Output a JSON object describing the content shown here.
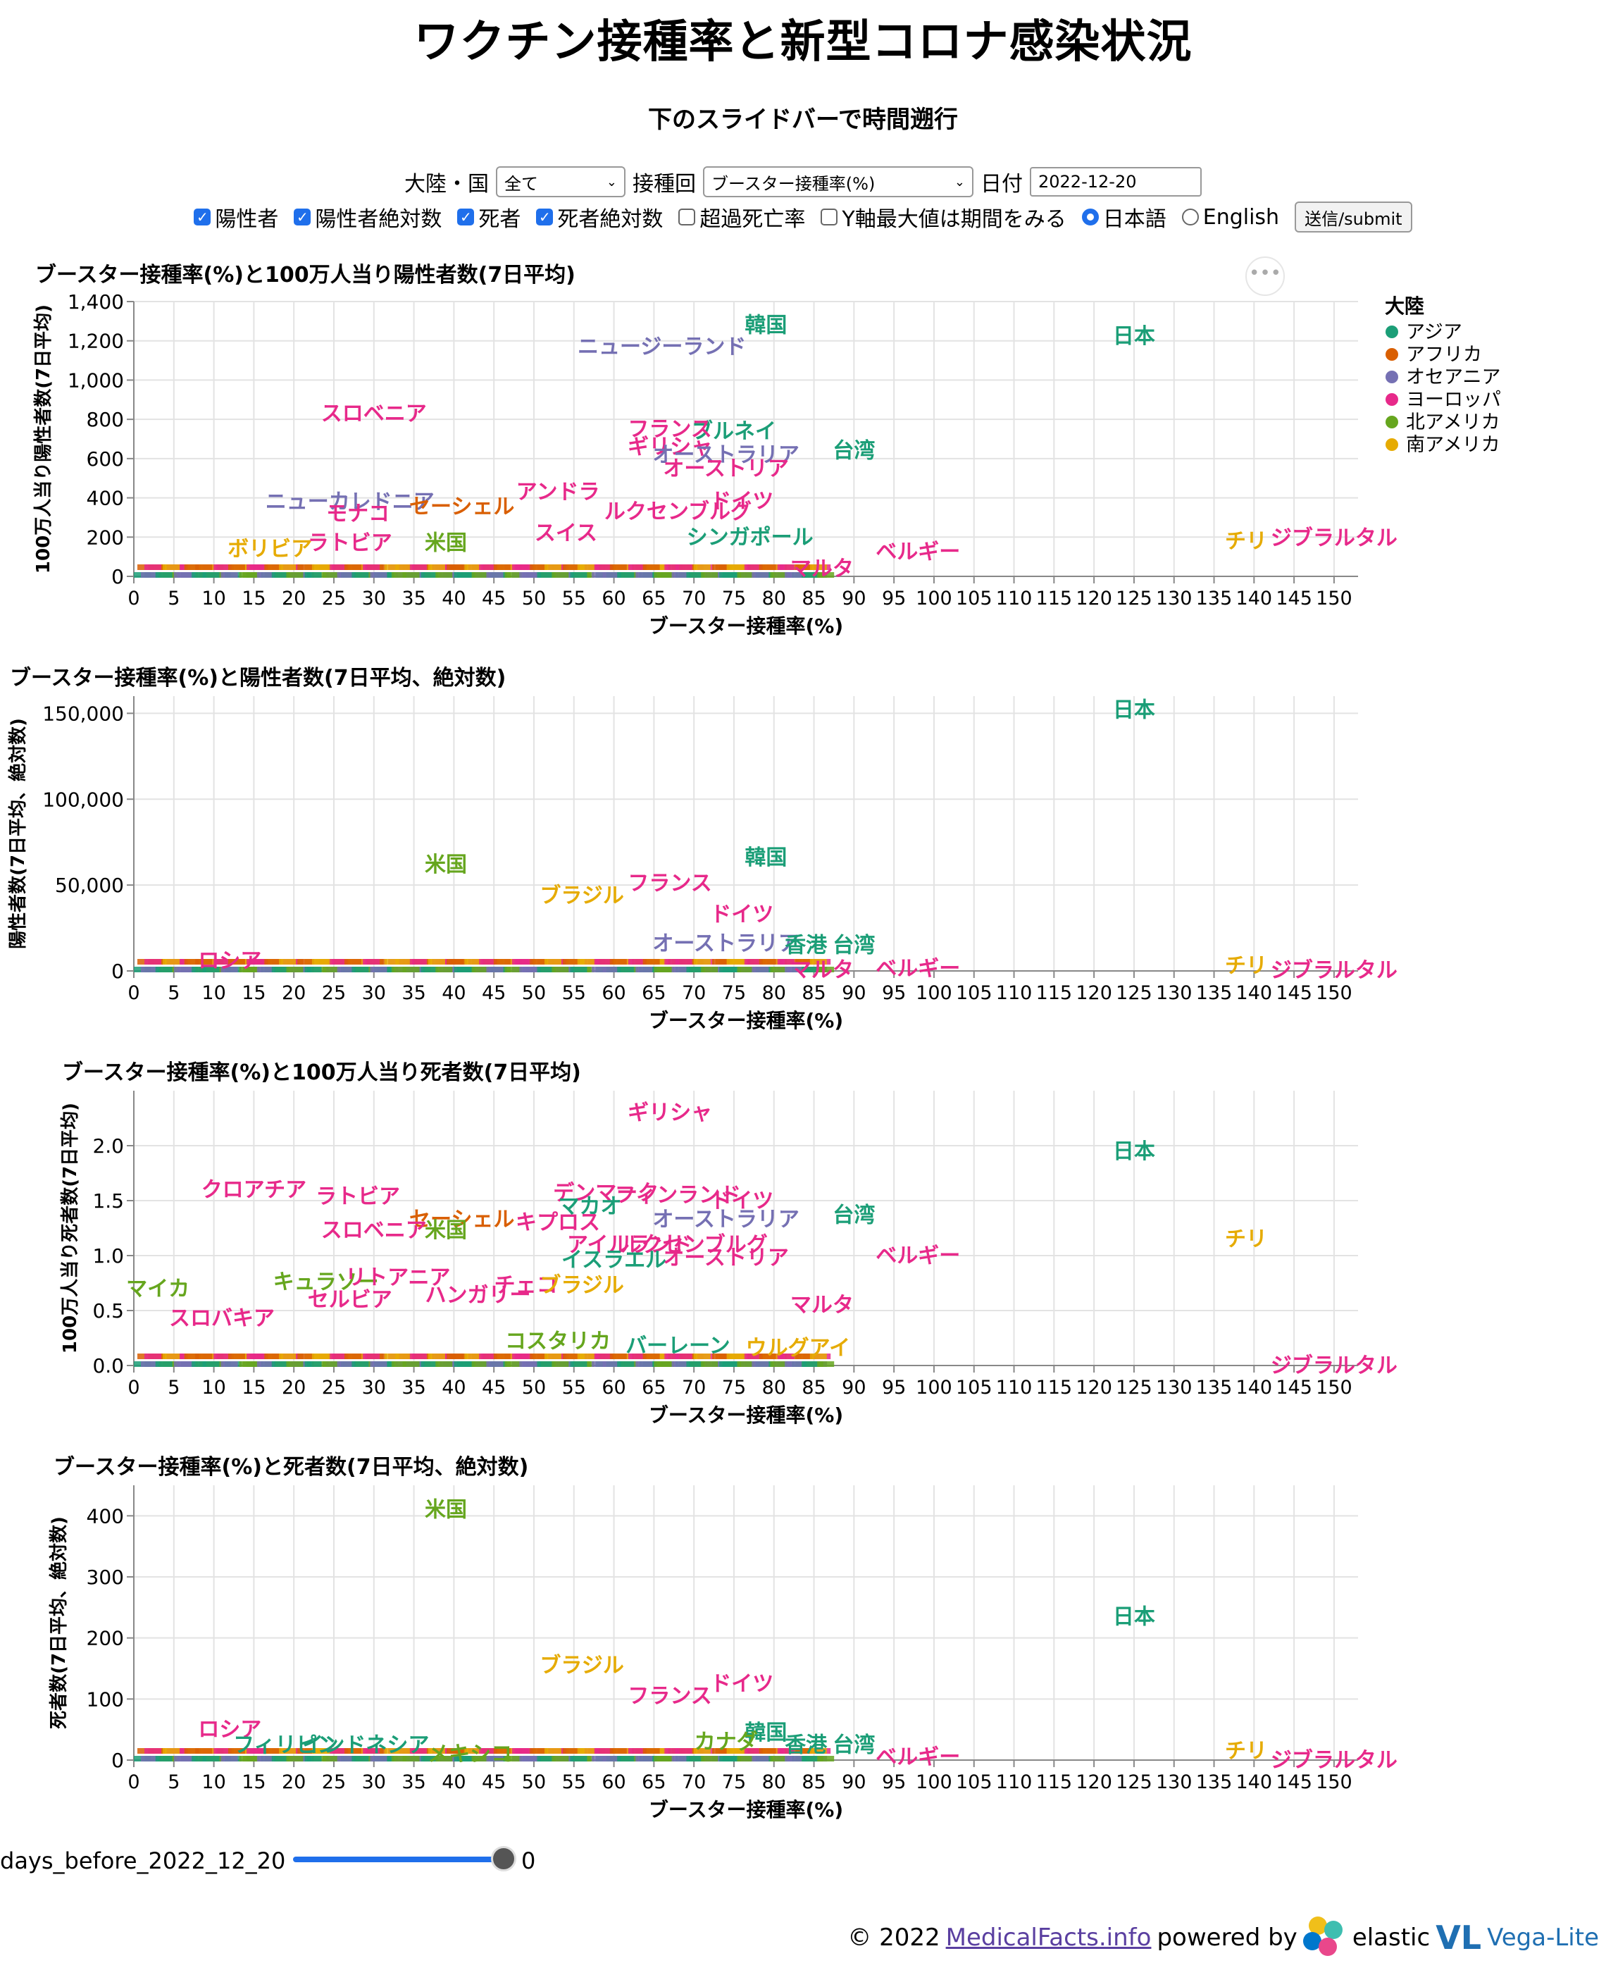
{
  "header": {
    "title": "ワクチン接種率と新型コロナ感染状況",
    "subtitle": "下のスライドバーで時間遡行"
  },
  "controls": {
    "continent_label": "大陸・国",
    "continent_value": "全て",
    "dose_label": "接種回",
    "dose_value": "ブースター接種率(%)",
    "date_label": "日付",
    "date_value": "2022-12-20",
    "checkboxes": [
      {
        "label": "陽性者",
        "checked": true
      },
      {
        "label": "陽性者絶対数",
        "checked": true
      },
      {
        "label": "死者",
        "checked": true
      },
      {
        "label": "死者絶対数",
        "checked": true
      },
      {
        "label": "超過死亡率",
        "checked": false
      },
      {
        "label": "Y軸最大値は期間をみる",
        "checked": false
      }
    ],
    "radios": [
      {
        "label": "日本語",
        "checked": true
      },
      {
        "label": "English",
        "checked": false
      }
    ],
    "submit_label": "送信/submit"
  },
  "legend": {
    "title": "大陸",
    "items": [
      {
        "label": "アジア",
        "color": "#1b9e77"
      },
      {
        "label": "アフリカ",
        "color": "#d95f02"
      },
      {
        "label": "オセアニア",
        "color": "#7570b3"
      },
      {
        "label": "ヨーロッパ",
        "color": "#e7298a"
      },
      {
        "label": "北アメリカ",
        "color": "#66a61e"
      },
      {
        "label": "南アメリカ",
        "color": "#e6ab02"
      }
    ]
  },
  "slider": {
    "label": "days_before_2022_12_20",
    "value": "0"
  },
  "footer": {
    "copyright": "© 2022",
    "link": "MedicalFacts.info",
    "powered": "powered by",
    "elastic": "elastic",
    "vega": "Vega-Lite"
  },
  "chart_data": [
    {
      "type": "scatter",
      "title": "ブースター接種率(%)と100万人当り陽性者数(7日平均)",
      "xlabel": "ブースター接種率(%)",
      "ylabel": "100万人当り陽性者数(7日平均)",
      "xlim": [
        0,
        153
      ],
      "ylim": [
        0,
        1400
      ],
      "yticks": [
        0,
        200,
        400,
        600,
        800,
        1000,
        1200,
        1400
      ],
      "points": [
        {
          "label": "韓国",
          "x": 79,
          "y": 1280,
          "c": 0
        },
        {
          "label": "ニュージーランド",
          "x": 66,
          "y": 1170,
          "c": 2
        },
        {
          "label": "日本",
          "x": 125,
          "y": 1225,
          "c": 0
        },
        {
          "label": "スロベニア",
          "x": 30,
          "y": 830,
          "c": 3
        },
        {
          "label": "ブルネイ",
          "x": 75,
          "y": 740,
          "c": 0
        },
        {
          "label": "フランス",
          "x": 67,
          "y": 750,
          "c": 3
        },
        {
          "label": "ギリシャ",
          "x": 67,
          "y": 660,
          "c": 3
        },
        {
          "label": "オーストラリア",
          "x": 74,
          "y": 620,
          "c": 2
        },
        {
          "label": "オーストリア",
          "x": 74,
          "y": 550,
          "c": 3
        },
        {
          "label": "台湾",
          "x": 90,
          "y": 640,
          "c": 0
        },
        {
          "label": "アンドラ",
          "x": 53,
          "y": 430,
          "c": 3
        },
        {
          "label": "ニューカレドニア",
          "x": 27,
          "y": 380,
          "c": 2
        },
        {
          "label": "ドイツ",
          "x": 76,
          "y": 385,
          "c": 3
        },
        {
          "label": "モナコ",
          "x": 28,
          "y": 320,
          "c": 3
        },
        {
          "label": "セーシェル",
          "x": 41,
          "y": 355,
          "c": 1
        },
        {
          "label": "ルクセンブルグ",
          "x": 68,
          "y": 330,
          "c": 3
        },
        {
          "label": "シンガポール",
          "x": 77,
          "y": 200,
          "c": 0
        },
        {
          "label": "ボリビア",
          "x": 17,
          "y": 140,
          "c": 5
        },
        {
          "label": "ラトビア",
          "x": 27,
          "y": 170,
          "c": 3
        },
        {
          "label": "米国",
          "x": 39,
          "y": 170,
          "c": 4
        },
        {
          "label": "スイス",
          "x": 54,
          "y": 220,
          "c": 3
        },
        {
          "label": "チリ",
          "x": 139,
          "y": 180,
          "c": 5
        },
        {
          "label": "ジブラルタル",
          "x": 150,
          "y": 195,
          "c": 3
        },
        {
          "label": "ベルギー",
          "x": 98,
          "y": 125,
          "c": 3
        },
        {
          "label": "マルタ",
          "x": 86,
          "y": 40,
          "c": 3
        }
      ]
    },
    {
      "type": "scatter",
      "title": "ブースター接種率(%)と陽性者数(7日平均、絶対数)",
      "xlabel": "ブースター接種率(%)",
      "ylabel": "陽性者数(7日平均、絶対数)",
      "xlim": [
        0,
        153
      ],
      "ylim": [
        0,
        160000
      ],
      "yticks": [
        0,
        50000,
        100000,
        150000
      ],
      "points": [
        {
          "label": "日本",
          "x": 125,
          "y": 152000,
          "c": 0
        },
        {
          "label": "米国",
          "x": 39,
          "y": 62000,
          "c": 4
        },
        {
          "label": "韓国",
          "x": 79,
          "y": 66000,
          "c": 0
        },
        {
          "label": "ブラジル",
          "x": 56,
          "y": 44000,
          "c": 5
        },
        {
          "label": "フランス",
          "x": 67,
          "y": 51000,
          "c": 3
        },
        {
          "label": "ドイツ",
          "x": 76,
          "y": 33000,
          "c": 3
        },
        {
          "label": "オーストラリア",
          "x": 74,
          "y": 16000,
          "c": 2
        },
        {
          "label": "香港",
          "x": 84,
          "y": 15000,
          "c": 0
        },
        {
          "label": "台湾",
          "x": 90,
          "y": 15000,
          "c": 0
        },
        {
          "label": "ロシア",
          "x": 12,
          "y": 6000,
          "c": 3
        },
        {
          "label": "チリ",
          "x": 139,
          "y": 3000,
          "c": 5
        },
        {
          "label": "ジブラルタル",
          "x": 150,
          "y": 500,
          "c": 3
        },
        {
          "label": "ベルギー",
          "x": 98,
          "y": 1500,
          "c": 3
        },
        {
          "label": "マルタ",
          "x": 86,
          "y": 600,
          "c": 3
        }
      ]
    },
    {
      "type": "scatter",
      "title": "ブースター接種率(%)と100万人当り死者数(7日平均)",
      "xlabel": "ブースター接種率(%)",
      "ylabel": "100万人当り死者数(7日平均)",
      "xlim": [
        0,
        153
      ],
      "ylim": [
        0,
        2.5
      ],
      "yticks": [
        0.0,
        0.5,
        1.0,
        1.5,
        2.0
      ],
      "points": [
        {
          "label": "ギリシャ",
          "x": 67,
          "y": 2.3,
          "c": 3
        },
        {
          "label": "日本",
          "x": 125,
          "y": 1.95,
          "c": 0
        },
        {
          "label": "クロアチア",
          "x": 15,
          "y": 1.6,
          "c": 3
        },
        {
          "label": "ラトビア",
          "x": 28,
          "y": 1.54,
          "c": 3
        },
        {
          "label": "デンマーク",
          "x": 59,
          "y": 1.57,
          "c": 3
        },
        {
          "label": "フィンランド",
          "x": 68,
          "y": 1.55,
          "c": 3
        },
        {
          "label": "ドイツ",
          "x": 76,
          "y": 1.5,
          "c": 3
        },
        {
          "label": "マカオ",
          "x": 57,
          "y": 1.45,
          "c": 0
        },
        {
          "label": "セーシェル",
          "x": 41,
          "y": 1.33,
          "c": 1
        },
        {
          "label": "キプロス",
          "x": 53,
          "y": 1.3,
          "c": 3
        },
        {
          "label": "オーストラリア",
          "x": 74,
          "y": 1.33,
          "c": 2
        },
        {
          "label": "台湾",
          "x": 90,
          "y": 1.37,
          "c": 0
        },
        {
          "label": "スロベニア",
          "x": 30,
          "y": 1.23,
          "c": 3
        },
        {
          "label": "米国",
          "x": 39,
          "y": 1.23,
          "c": 4
        },
        {
          "label": "チリ",
          "x": 139,
          "y": 1.15,
          "c": 5
        },
        {
          "label": "アイルランド",
          "x": 62,
          "y": 1.1,
          "c": 3
        },
        {
          "label": "ルクセンブルグ",
          "x": 70,
          "y": 1.1,
          "c": 3
        },
        {
          "label": "イスラエル",
          "x": 60,
          "y": 0.96,
          "c": 0
        },
        {
          "label": "オーストリア",
          "x": 74,
          "y": 0.98,
          "c": 3
        },
        {
          "label": "ベルギー",
          "x": 98,
          "y": 1.0,
          "c": 3
        },
        {
          "label": "マイカ",
          "x": 3,
          "y": 0.7,
          "c": 4
        },
        {
          "label": "キュラソー",
          "x": 24,
          "y": 0.76,
          "c": 4
        },
        {
          "label": "リトアニア",
          "x": 33,
          "y": 0.8,
          "c": 3
        },
        {
          "label": "チェコ",
          "x": 49,
          "y": 0.73,
          "c": 3
        },
        {
          "label": "ハンガリー",
          "x": 43,
          "y": 0.64,
          "c": 3
        },
        {
          "label": "セルビア",
          "x": 27,
          "y": 0.6,
          "c": 3
        },
        {
          "label": "ブラジル",
          "x": 56,
          "y": 0.73,
          "c": 5
        },
        {
          "label": "マルタ",
          "x": 86,
          "y": 0.55,
          "c": 3
        },
        {
          "label": "スロバキア",
          "x": 11,
          "y": 0.43,
          "c": 3
        },
        {
          "label": "コスタリカ",
          "x": 53,
          "y": 0.22,
          "c": 4
        },
        {
          "label": "バーレーン",
          "x": 68,
          "y": 0.18,
          "c": 0
        },
        {
          "label": "ウルグアイ",
          "x": 83,
          "y": 0.16,
          "c": 5
        },
        {
          "label": "ジブラルタル",
          "x": 150,
          "y": 0.0,
          "c": 3
        }
      ]
    },
    {
      "type": "scatter",
      "title": "ブースター接種率(%)と死者数(7日平均、絶対数)",
      "xlabel": "ブースター接種率(%)",
      "ylabel": "死者数(7日平均、絶対数)",
      "xlim": [
        0,
        153
      ],
      "ylim": [
        0,
        450
      ],
      "yticks": [
        0,
        100,
        200,
        300,
        400
      ],
      "points": [
        {
          "label": "米国",
          "x": 39,
          "y": 410,
          "c": 4
        },
        {
          "label": "日本",
          "x": 125,
          "y": 235,
          "c": 0
        },
        {
          "label": "ブラジル",
          "x": 56,
          "y": 155,
          "c": 5
        },
        {
          "label": "ドイツ",
          "x": 76,
          "y": 125,
          "c": 3
        },
        {
          "label": "フランス",
          "x": 67,
          "y": 105,
          "c": 3
        },
        {
          "label": "ロシア",
          "x": 12,
          "y": 50,
          "c": 3
        },
        {
          "label": "フィリピン",
          "x": 19,
          "y": 25,
          "c": 0
        },
        {
          "label": "インドネシア",
          "x": 29,
          "y": 25,
          "c": 0
        },
        {
          "label": "メキシコ",
          "x": 42,
          "y": 10,
          "c": 4
        },
        {
          "label": "韓国",
          "x": 79,
          "y": 45,
          "c": 0
        },
        {
          "label": "香港",
          "x": 84,
          "y": 25,
          "c": 0
        },
        {
          "label": "台湾",
          "x": 90,
          "y": 25,
          "c": 0
        },
        {
          "label": "カナダ",
          "x": 74,
          "y": 30,
          "c": 4
        },
        {
          "label": "チリ",
          "x": 139,
          "y": 15,
          "c": 5
        },
        {
          "label": "ベルギー",
          "x": 98,
          "y": 5,
          "c": 3
        },
        {
          "label": "ジブラルタル",
          "x": 150,
          "y": 0,
          "c": 3
        }
      ]
    }
  ]
}
